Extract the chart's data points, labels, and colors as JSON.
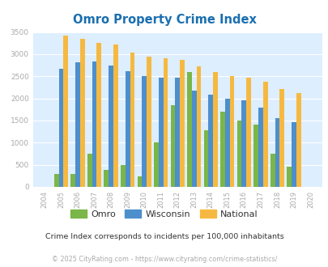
{
  "title": "Omro Property Crime Index",
  "title_color": "#1a6faf",
  "years": [
    "2004",
    "2005",
    "2006",
    "2007",
    "2008",
    "2009",
    "2010",
    "2011",
    "2012",
    "2013",
    "2014",
    "2015",
    "2016",
    "2017",
    "2018",
    "2019",
    "2020"
  ],
  "omro": [
    0,
    300,
    300,
    750,
    380,
    500,
    230,
    1000,
    1850,
    2600,
    1280,
    1700,
    1500,
    1400,
    750,
    450,
    0
  ],
  "wisconsin": [
    0,
    2670,
    2810,
    2830,
    2750,
    2610,
    2510,
    2460,
    2470,
    2180,
    2090,
    2000,
    1950,
    1800,
    1560,
    1470,
    0
  ],
  "national": [
    0,
    3420,
    3340,
    3260,
    3210,
    3040,
    2950,
    2910,
    2870,
    2720,
    2600,
    2500,
    2470,
    2380,
    2210,
    2120,
    0
  ],
  "omro_color": "#7ab648",
  "wisconsin_color": "#4d8fcc",
  "national_color": "#f5b942",
  "bg_color": "#ddeeff",
  "ylim": [
    0,
    3500
  ],
  "yticks": [
    0,
    500,
    1000,
    1500,
    2000,
    2500,
    3000,
    3500
  ],
  "tick_color": "#aaaaaa",
  "subtitle": "Crime Index corresponds to incidents per 100,000 inhabitants",
  "footer": "© 2025 CityRating.com - https://www.cityrating.com/crime-statistics/",
  "legend_labels": [
    "Omro",
    "Wisconsin",
    "National"
  ],
  "bar_width": 0.28
}
